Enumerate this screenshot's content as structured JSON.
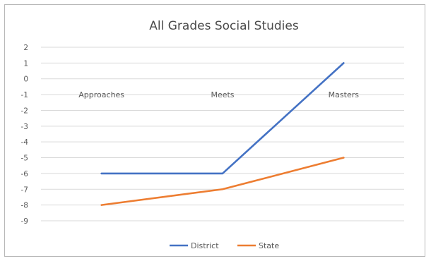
{
  "chart_data": {
    "type": "line",
    "title": "All Grades Social Studies",
    "xlabel": "",
    "ylabel": "",
    "categories": [
      "Approaches",
      "Meets",
      "Masters"
    ],
    "series": [
      {
        "name": "District",
        "values": [
          -6,
          -6,
          1
        ],
        "color": "#4472c4"
      },
      {
        "name": "State",
        "values": [
          -8,
          -7,
          -5
        ],
        "color": "#ed7d31"
      }
    ],
    "ylim": [
      -9,
      2
    ],
    "yticks": [
      "2",
      "1",
      "0",
      "-1",
      "-2",
      "-3",
      "-4",
      "-5",
      "-6",
      "-7",
      "-8",
      "-9"
    ],
    "grid": true,
    "legend_position": "bottom"
  }
}
